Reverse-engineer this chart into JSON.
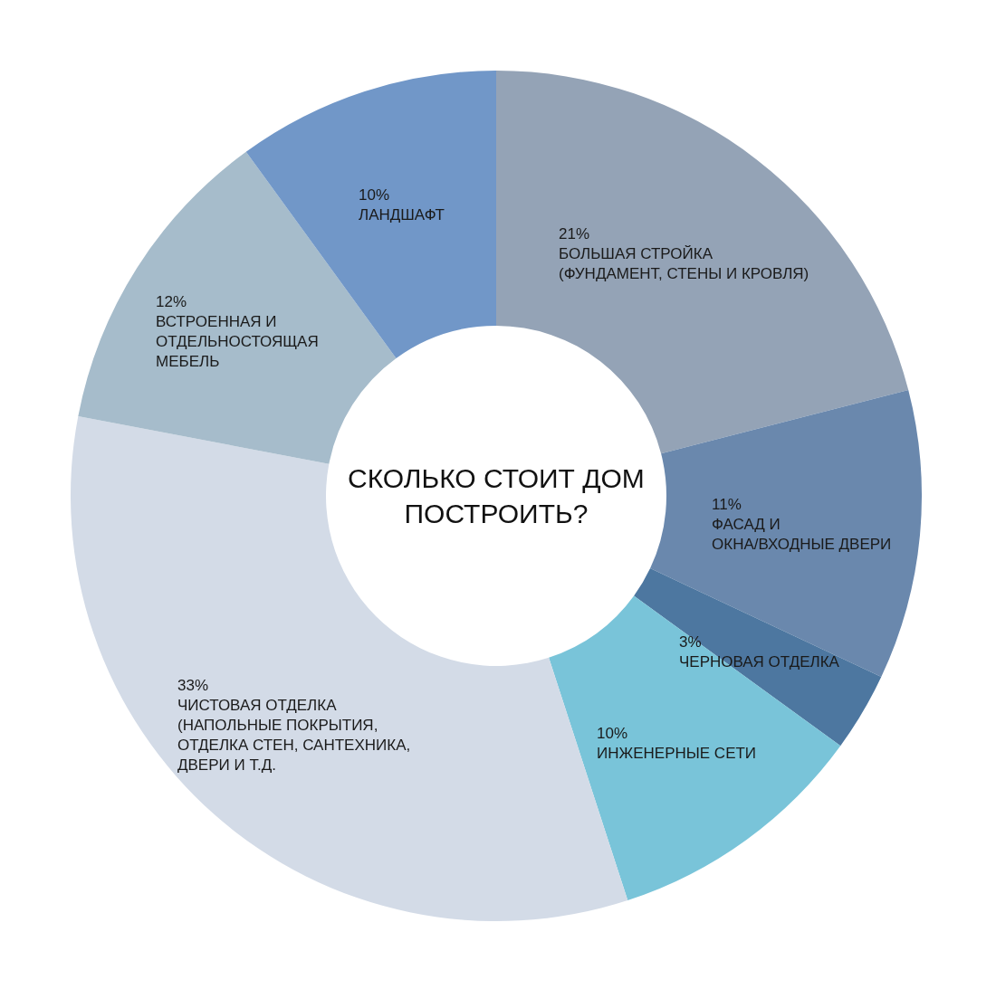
{
  "chart_data": {
    "type": "donut",
    "title": "СКОЛЬКО СТОИТ ДОМ\nПОСТРОИТЬ?",
    "categories": [
      "БОЛЬШАЯ СТРОЙКА\n(ФУНДАМЕНТ, СТЕНЫ И КРОВЛЯ)",
      "ФАСАД И\nОКНА/ВХОДНЫЕ ДВЕРИ",
      "ЧЕРНОВАЯ ОТДЕЛКА",
      "ИНЖЕНЕРНЫЕ СЕТИ",
      "ЧИСТОВАЯ ОТДЕЛКА\n(НАПОЛЬНЫЕ ПОКРЫТИЯ,\nОТДЕЛКА СТЕН, САНТЕХНИКА,\nДВЕРИ И Т.Д.",
      "ВСТРОЕННАЯ И\nОТДЕЛЬНОСТОЯЩАЯ\nМЕБЕЛЬ",
      "ЛАНДШАФТ"
    ],
    "values": [
      21,
      11,
      3,
      10,
      33,
      12,
      10
    ],
    "value_labels": [
      "21%",
      "11%",
      "3%",
      "10%",
      "33%",
      "12%",
      "10%"
    ],
    "colors": [
      "#94a3b6",
      "#6a88ad",
      "#4d77a0",
      "#79c4d9",
      "#d3dbe7",
      "#a6bccb",
      "#7197c8"
    ],
    "legend": false
  }
}
